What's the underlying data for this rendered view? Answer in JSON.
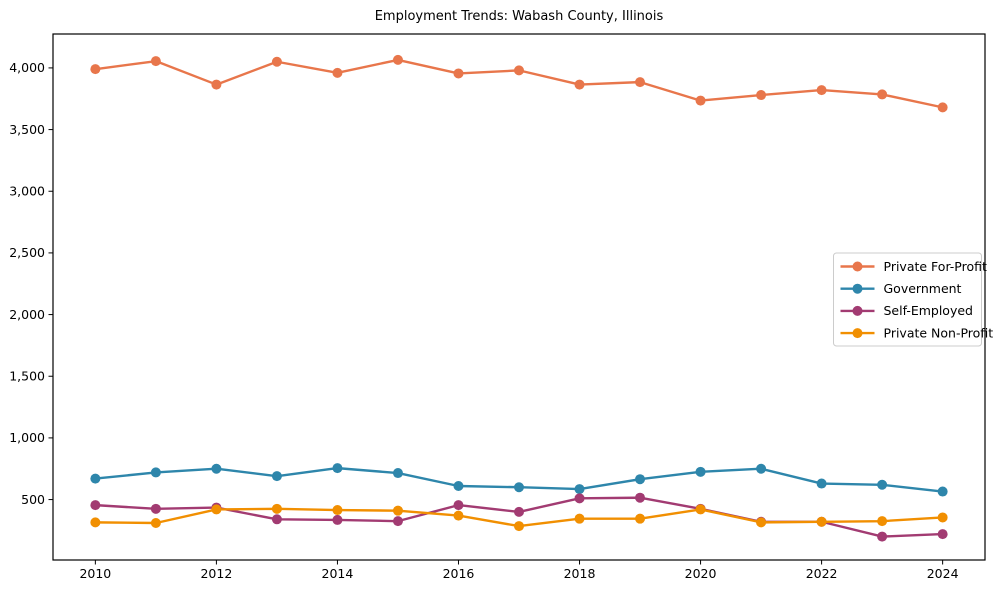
{
  "chart_data": {
    "type": "line",
    "title": "Employment Trends: Wabash County, Illinois",
    "xlabel": "",
    "ylabel": "",
    "x": [
      2010,
      2011,
      2012,
      2013,
      2014,
      2015,
      2016,
      2017,
      2018,
      2019,
      2020,
      2021,
      2022,
      2023,
      2024
    ],
    "series": [
      {
        "name": "Private For-Profit",
        "color": "#E8764B",
        "values": [
          3990,
          4055,
          3865,
          4050,
          3960,
          4065,
          3955,
          3980,
          3865,
          3885,
          3735,
          3780,
          3820,
          3785,
          3680
        ]
      },
      {
        "name": "Government",
        "color": "#2E86AB",
        "values": [
          670,
          720,
          750,
          690,
          755,
          715,
          610,
          600,
          585,
          665,
          725,
          750,
          630,
          620,
          565
        ]
      },
      {
        "name": "Self-Employed",
        "color": "#A23B72",
        "values": [
          455,
          425,
          435,
          340,
          335,
          325,
          455,
          400,
          510,
          515,
          425,
          320,
          320,
          200,
          220
        ]
      },
      {
        "name": "Private Non-Profit",
        "color": "#F18F01",
        "values": [
          315,
          310,
          420,
          425,
          415,
          410,
          370,
          285,
          345,
          345,
          420,
          315,
          320,
          325,
          355
        ]
      }
    ],
    "x_ticks": [
      2010,
      2012,
      2014,
      2016,
      2018,
      2020,
      2022,
      2024
    ],
    "x_tick_labels": [
      "2010",
      "2012",
      "2014",
      "2016",
      "2018",
      "2020",
      "2022",
      "2024"
    ],
    "y_ticks": [
      500,
      1000,
      1500,
      2000,
      2500,
      3000,
      3500,
      4000
    ],
    "y_tick_labels": [
      "500",
      "1,000",
      "1,500",
      "2,000",
      "2,500",
      "3,000",
      "3,500",
      "4,000"
    ],
    "xlim": [
      2009.3,
      2024.7
    ],
    "ylim": [
      10,
      4275
    ],
    "grid": false,
    "legend_position": "center-right",
    "marker": "circle",
    "axis_color": "#000000",
    "legend_border_color": "#cccccc",
    "background_color": "#ffffff"
  }
}
